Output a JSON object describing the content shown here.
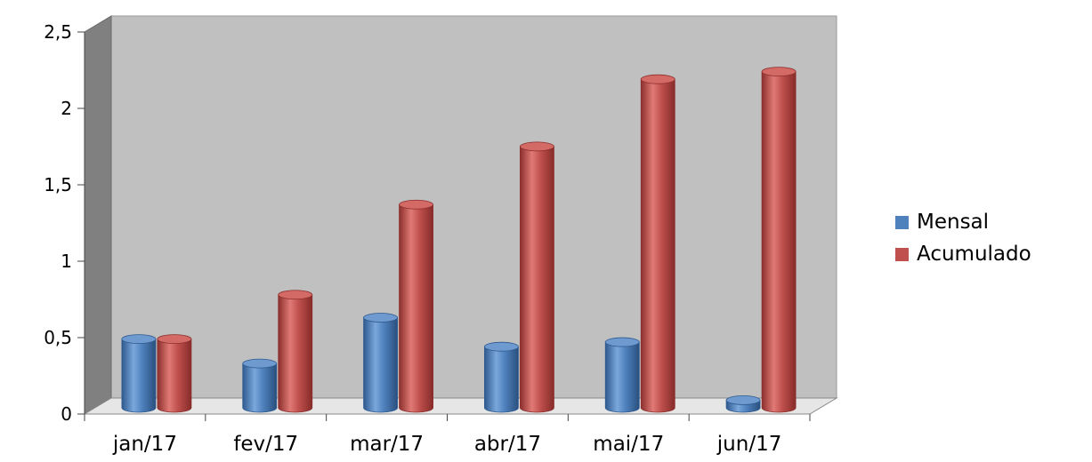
{
  "chart_data": {
    "type": "bar",
    "style": "3d-cylinder",
    "categories": [
      "jan/17",
      "fev/17",
      "mar/17",
      "abr/17",
      "mai/17",
      "jun/17"
    ],
    "series": [
      {
        "name": "Mensal",
        "color": "#4f81bd",
        "values": [
          0.45,
          0.29,
          0.59,
          0.4,
          0.43,
          0.05
        ]
      },
      {
        "name": "Acumulado",
        "color": "#c0504d",
        "values": [
          0.45,
          0.74,
          1.33,
          1.71,
          2.15,
          2.2
        ]
      }
    ],
    "ylim": [
      0,
      2.5
    ],
    "yticks": [
      {
        "value": 0,
        "label": "0"
      },
      {
        "value": 0.5,
        "label": "0,5"
      },
      {
        "value": 1,
        "label": "1"
      },
      {
        "value": 1.5,
        "label": "1,5"
      },
      {
        "value": 2,
        "label": "2"
      },
      {
        "value": 2.5,
        "label": "2,5"
      }
    ],
    "legend_position": "right",
    "background": "#c0c0c0",
    "wall_color": "#808080",
    "floor_color": "#e6e6e6"
  }
}
